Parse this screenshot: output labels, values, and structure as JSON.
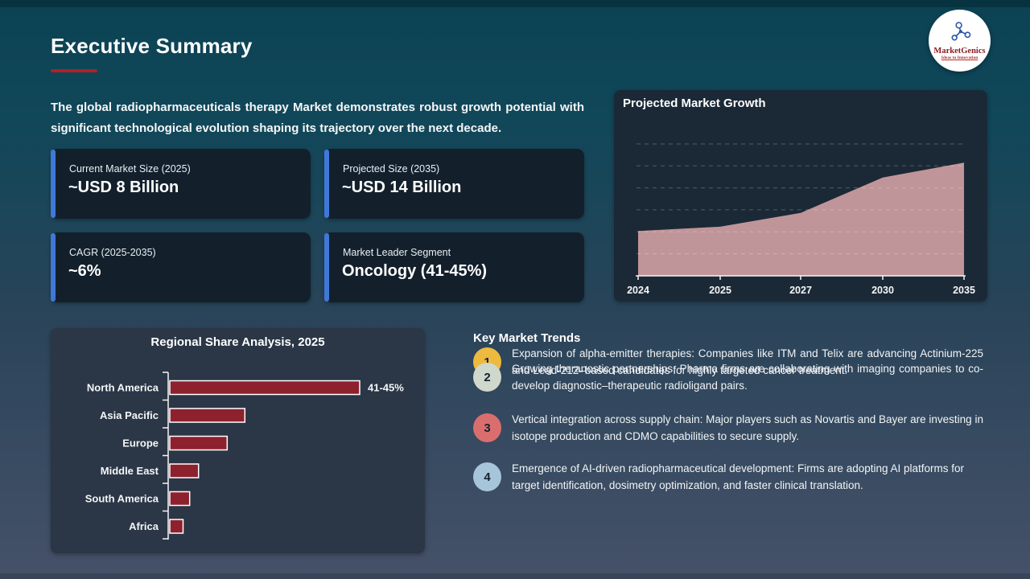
{
  "slide": {
    "title": "Executive Summary",
    "intro": "The global radiopharmaceuticals therapy Market demonstrates robust growth potential with significant technological evolution shaping its trajectory over the next decade."
  },
  "logo": {
    "name": "MarketGenics",
    "tagline": "Ideas to Innovation"
  },
  "stats": [
    {
      "label": "Current Market Size (2025)",
      "value": "~USD 8 Billion"
    },
    {
      "label": "Projected Size (2035)",
      "value": "~USD 14 Billion"
    },
    {
      "label": "CAGR (2025-2035)",
      "value": "~6%"
    },
    {
      "label": "Market Leader Segment",
      "value": "Oncology (41-45%)"
    }
  ],
  "chart_data": [
    {
      "type": "area",
      "title": "Projected Market Growth",
      "x": [
        "2024",
        "2025",
        "2027",
        "2030",
        "2035"
      ],
      "values": [
        7.6,
        8.0,
        9.3,
        12.6,
        14.0
      ],
      "unit": "USD Billion",
      "ylim": [
        3.4,
        15.75
      ],
      "grid": "dashed horizontal, no y tick labels",
      "legend": "none"
    },
    {
      "type": "bar",
      "orientation": "horizontal",
      "title": "Regional Share Analysis, 2025",
      "categories": [
        "North America",
        "Asia Pacific",
        "Europe",
        "Middle East",
        "South America",
        "Africa"
      ],
      "values": [
        43,
        17,
        13,
        6.5,
        4.5,
        3
      ],
      "value_labels": [
        "41-45%",
        "",
        "",
        "",
        "",
        ""
      ],
      "unit": "% share",
      "xlim": [
        0,
        50
      ],
      "grid": "off",
      "legend": "none"
    }
  ],
  "trends": {
    "heading": "Key Market Trends",
    "items": [
      {
        "num": "1",
        "color": "#edba3f",
        "text": "Expansion of alpha-emitter therapies: Companies like ITM and Telix are advancing Actinium-225 and Lead-212–based candidates for highly targeted cancer treatment."
      },
      {
        "num": "2",
        "color": "#d0d7cc",
        "text": "Growing theranostic partnerships: Pharma firms are collaborating with imaging companies to co-develop diagnostic–therapeutic radioligand pairs."
      },
      {
        "num": "3",
        "color": "#da6e6e",
        "text": "Vertical integration across supply chain: Major players such as Novartis and Bayer are investing in isotope production and CDMO capabilities to secure supply."
      },
      {
        "num": "4",
        "color": "#a6c5da",
        "text": "Emergence of AI-driven radiopharmaceutical development: Firms are adopting AI platforms for target identification, dosimetry optimization, and faster clinical translation."
      }
    ]
  },
  "colors": {
    "area_fill": "#c09599",
    "bar_fill": "#8e212e",
    "bar_stroke": "#ffffff",
    "accent_blue": "#4078d8",
    "underline_red": "#b41f24",
    "axis_white": "#f5f6f7"
  }
}
